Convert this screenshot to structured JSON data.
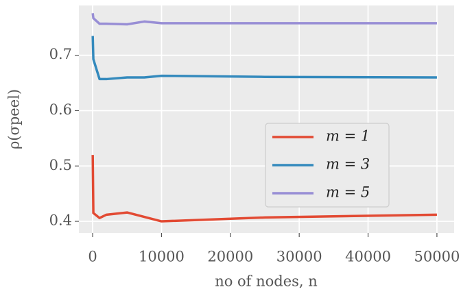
{
  "chart_data": {
    "type": "line",
    "xlabel": "no of nodes, n",
    "ylabel": "ρ(σpeel)",
    "x": [
      10,
      100,
      1000,
      2000,
      5000,
      7500,
      10000,
      25000,
      50000
    ],
    "series": [
      {
        "name": "m = 1",
        "color": "#E24A33",
        "values": [
          0.52,
          0.415,
          0.406,
          0.412,
          0.416,
          0.408,
          0.4,
          0.407,
          0.412
        ]
      },
      {
        "name": "m = 3",
        "color": "#348ABD",
        "values": [
          0.735,
          0.693,
          0.657,
          0.657,
          0.66,
          0.66,
          0.663,
          0.661,
          0.66
        ]
      },
      {
        "name": "m = 5",
        "color": "#988ED5",
        "values": [
          0.776,
          0.767,
          0.757,
          0.757,
          0.756,
          0.761,
          0.758,
          0.758,
          0.758
        ]
      }
    ],
    "xlim": [
      -2000,
      52500
    ],
    "xticks": [
      0,
      10000,
      20000,
      30000,
      40000,
      50000
    ],
    "ylim": [
      0.379,
      0.79
    ],
    "yticks": [
      0.4,
      0.5,
      0.6,
      0.7
    ],
    "grid": true,
    "legend_loc": "center right"
  }
}
